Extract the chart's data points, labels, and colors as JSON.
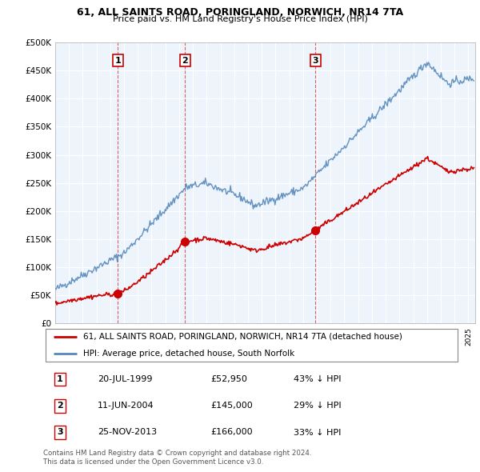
{
  "title": "61, ALL SAINTS ROAD, PORINGLAND, NORWICH, NR14 7TA",
  "subtitle": "Price paid vs. HM Land Registry's House Price Index (HPI)",
  "legend_line1": "61, ALL SAINTS ROAD, PORINGLAND, NORWICH, NR14 7TA (detached house)",
  "legend_line2": "HPI: Average price, detached house, South Norfolk",
  "footnote1": "Contains HM Land Registry data © Crown copyright and database right 2024.",
  "footnote2": "This data is licensed under the Open Government Licence v3.0.",
  "sales": [
    {
      "num": 1,
      "date": "20-JUL-1999",
      "price": 52950,
      "pct": "43%",
      "year": 1999.55
    },
    {
      "num": 2,
      "date": "11-JUN-2004",
      "price": 145000,
      "pct": "29%",
      "year": 2004.44
    },
    {
      "num": 3,
      "date": "25-NOV-2013",
      "price": 166000,
      "pct": "33%",
      "year": 2013.9
    }
  ],
  "red_color": "#cc0000",
  "blue_color": "#5588bb",
  "chart_bg": "#eef4fb",
  "ylim": [
    0,
    500000
  ],
  "xlim_start": 1995.0,
  "xlim_end": 2025.5
}
